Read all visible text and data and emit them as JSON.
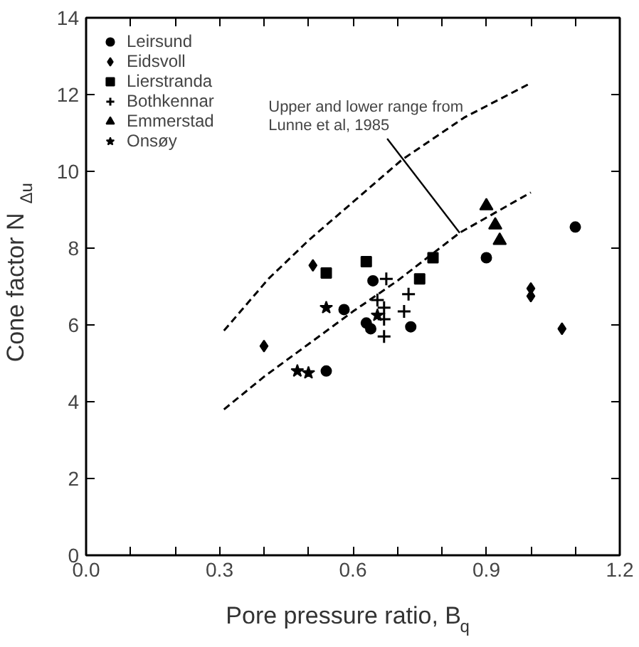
{
  "chart_data": {
    "type": "scatter",
    "xlabel": "Pore pressure ratio, B$_{q}$",
    "ylabel": "Cone factor N$_{Δu}$",
    "xlim": [
      0.0,
      1.2
    ],
    "ylim": [
      0,
      14
    ],
    "xticks": [
      {
        "value": 0.0,
        "label": "0.0"
      },
      {
        "value": 0.1,
        "label": null
      },
      {
        "value": 0.2,
        "label": null
      },
      {
        "value": 0.3,
        "label": "0.3"
      },
      {
        "value": 0.4,
        "label": null
      },
      {
        "value": 0.5,
        "label": null
      },
      {
        "value": 0.6,
        "label": "0.6"
      },
      {
        "value": 0.7,
        "label": null
      },
      {
        "value": 0.8,
        "label": null
      },
      {
        "value": 0.9,
        "label": "0.9"
      },
      {
        "value": 1.0,
        "label": null
      },
      {
        "value": 1.1,
        "label": null
      },
      {
        "value": 1.2,
        "label": "1.2"
      }
    ],
    "yticks": [
      0,
      2,
      4,
      6,
      8,
      10,
      12,
      14
    ],
    "grid": false,
    "legend": "top left",
    "series": [
      {
        "name": "Leirsund",
        "color": "#000000",
        "marker": "circle",
        "x": [
          0.54,
          0.58,
          0.645,
          0.63,
          0.64,
          0.73,
          0.9,
          1.1
        ],
        "values": [
          4.8,
          6.4,
          7.15,
          6.05,
          5.9,
          5.95,
          7.75,
          8.55
        ]
      },
      {
        "name": "Eidsvoll",
        "color": "#000000",
        "marker": "diamond",
        "x": [
          0.4,
          0.51,
          1.0,
          1.0,
          1.07
        ],
        "values": [
          5.45,
          7.55,
          6.95,
          6.75,
          5.9
        ]
      },
      {
        "name": "Lierstranda",
        "color": "#000000",
        "marker": "square",
        "x": [
          0.54,
          0.63,
          0.75,
          0.78
        ],
        "values": [
          7.35,
          7.65,
          7.2,
          7.75
        ]
      },
      {
        "name": "Bothkennar",
        "color": "#000000",
        "marker": "cross",
        "x": [
          0.675,
          0.725,
          0.655,
          0.67,
          0.715,
          0.67,
          0.67
        ],
        "values": [
          7.2,
          6.8,
          6.65,
          6.45,
          6.35,
          6.15,
          5.7
        ]
      },
      {
        "name": "Emmerstad",
        "color": "#000000",
        "marker": "triangle",
        "x": [
          0.9,
          0.92,
          0.93
        ],
        "values": [
          9.1,
          8.6,
          8.2
        ]
      },
      {
        "name": "Onsøy",
        "color": "#000000",
        "marker": "star",
        "x": [
          0.475,
          0.5,
          0.54,
          0.655
        ],
        "values": [
          4.8,
          4.75,
          6.45,
          6.25
        ]
      },
      {
        "type": "line",
        "line_style": "dashed",
        "color": "#000000",
        "x": [
          0.31,
          0.41,
          0.5,
          0.6,
          0.71,
          0.85,
          1.0
        ],
        "values": [
          5.85,
          7.2,
          8.2,
          9.2,
          10.3,
          11.4,
          12.3
        ]
      },
      {
        "type": "line",
        "line_style": "dashed",
        "color": "#000000",
        "x": [
          0.31,
          0.4,
          0.5,
          0.6,
          0.7,
          0.84,
          1.0
        ],
        "values": [
          3.8,
          4.65,
          5.5,
          6.35,
          7.15,
          8.4,
          9.45
        ]
      }
    ],
    "annotations": [
      {
        "text": "Upper and lower range from\nLunne et al, 1985",
        "x": 0.84,
        "y": 8.4
      }
    ]
  }
}
